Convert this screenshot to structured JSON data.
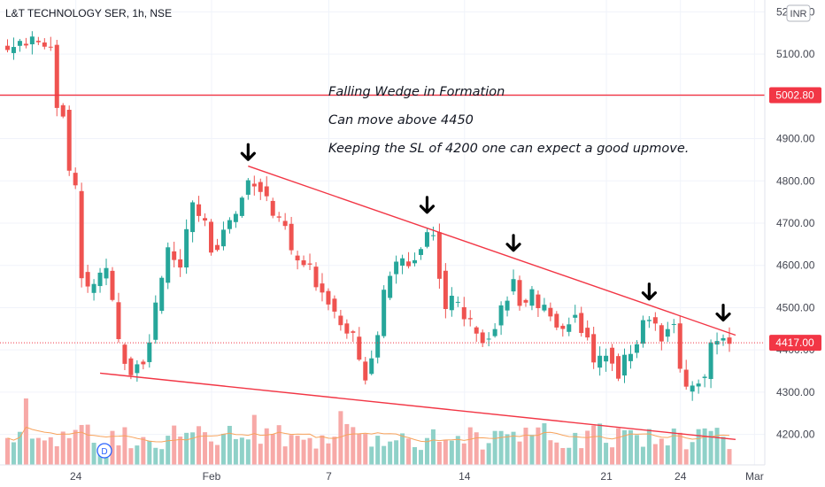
{
  "chart_data": {
    "type": "candlestick",
    "title": "L&T TECHNOLOGY SER, 1h, NSE",
    "currency": "INR",
    "y_ticks": [
      4200,
      4300,
      4400,
      4500,
      4600,
      4700,
      4800,
      4900,
      5000,
      5100,
      5200
    ],
    "y_tick_labels": [
      "4200.00",
      "4300.00",
      "4400.00",
      "4500.00",
      "4600.00",
      "4700.00",
      "4800.00",
      "4900.00",
      "5000.00",
      "5100.00",
      "5200.00"
    ],
    "ylim": [
      4128,
      5228
    ],
    "x_tick_labels": [
      "24",
      "Feb",
      "7",
      "14",
      "21",
      "24",
      "Mar"
    ],
    "x_tick_bars": [
      11,
      33,
      52,
      74,
      97,
      109,
      121
    ],
    "bar_count": 121,
    "resistance_level": {
      "value": 5002.8,
      "label": "5002.80",
      "color": "#f23645"
    },
    "last_price": {
      "value": 4417,
      "label": "4417.00",
      "color": "#f23645"
    },
    "annotations": [
      "Falling Wedge in Formation",
      "Can move above 4450",
      "Keeping the SL of 4200 one can expect a good upmove."
    ],
    "trendlines": [
      {
        "name": "upper",
        "from": {
          "bar": 39,
          "price": 4835
        },
        "to": {
          "bar": 118,
          "price": 4435
        }
      },
      {
        "name": "lower",
        "from": {
          "bar": 15,
          "price": 4345
        },
        "to": {
          "bar": 118,
          "price": 4188
        }
      }
    ],
    "arrow_markers": [
      {
        "bar": 39,
        "price": 4840
      },
      {
        "bar": 68,
        "price": 4715
      },
      {
        "bar": 82,
        "price": 4625
      },
      {
        "bar": 104,
        "price": 4510
      },
      {
        "bar": 116,
        "price": 4460
      }
    ],
    "close_path": [
      [
        0,
        5110
      ],
      [
        3,
        5130
      ],
      [
        6,
        5125
      ],
      [
        7,
        5120
      ],
      [
        8,
        4980
      ],
      [
        9,
        4960
      ],
      [
        10,
        4820
      ],
      [
        11,
        4780
      ],
      [
        12,
        4580
      ],
      [
        13,
        4540
      ],
      [
        14,
        4560
      ],
      [
        16,
        4580
      ],
      [
        17,
        4510
      ],
      [
        18,
        4420
      ],
      [
        19,
        4380
      ],
      [
        20,
        4350
      ],
      [
        21,
        4370
      ],
      [
        22,
        4380
      ],
      [
        23,
        4420
      ],
      [
        24,
        4500
      ],
      [
        25,
        4560
      ],
      [
        26,
        4640
      ],
      [
        28,
        4590
      ],
      [
        29,
        4680
      ],
      [
        30,
        4740
      ],
      [
        31,
        4720
      ],
      [
        32,
        4700
      ],
      [
        33,
        4640
      ],
      [
        34,
        4650
      ],
      [
        35,
        4680
      ],
      [
        36,
        4710
      ],
      [
        37,
        4720
      ],
      [
        38,
        4760
      ],
      [
        39,
        4800
      ],
      [
        40,
        4800
      ],
      [
        41,
        4780
      ],
      [
        42,
        4760
      ],
      [
        43,
        4720
      ],
      [
        44,
        4700
      ],
      [
        45,
        4690
      ],
      [
        46,
        4630
      ],
      [
        47,
        4610
      ],
      [
        48,
        4600
      ],
      [
        49,
        4590
      ],
      [
        50,
        4560
      ],
      [
        51,
        4540
      ],
      [
        52,
        4520
      ],
      [
        53,
        4490
      ],
      [
        54,
        4470
      ],
      [
        55,
        4450
      ],
      [
        56,
        4430
      ],
      [
        57,
        4370
      ],
      [
        58,
        4340
      ],
      [
        59,
        4390
      ],
      [
        60,
        4440
      ],
      [
        61,
        4530
      ],
      [
        62,
        4580
      ],
      [
        63,
        4600
      ],
      [
        64,
        4610
      ],
      [
        65,
        4600
      ],
      [
        66,
        4620
      ],
      [
        67,
        4640
      ],
      [
        68,
        4680
      ],
      [
        69,
        4670
      ],
      [
        70,
        4580
      ],
      [
        71,
        4500
      ],
      [
        72,
        4520
      ],
      [
        73,
        4510
      ],
      [
        74,
        4480
      ],
      [
        75,
        4460
      ],
      [
        76,
        4450
      ],
      [
        77,
        4430
      ],
      [
        78,
        4440
      ],
      [
        79,
        4450
      ],
      [
        80,
        4500
      ],
      [
        81,
        4530
      ],
      [
        82,
        4560
      ],
      [
        83,
        4510
      ],
      [
        84,
        4500
      ],
      [
        85,
        4530
      ],
      [
        86,
        4490
      ],
      [
        87,
        4500
      ],
      [
        88,
        4490
      ],
      [
        89,
        4460
      ],
      [
        90,
        4450
      ],
      [
        91,
        4470
      ],
      [
        92,
        4480
      ],
      [
        93,
        4450
      ],
      [
        94,
        4440
      ],
      [
        95,
        4360
      ],
      [
        96,
        4380
      ],
      [
        97,
        4400
      ],
      [
        98,
        4380
      ],
      [
        99,
        4340
      ],
      [
        100,
        4380
      ],
      [
        101,
        4400
      ],
      [
        102,
        4410
      ],
      [
        103,
        4470
      ],
      [
        104,
        4480
      ],
      [
        105,
        4450
      ],
      [
        106,
        4430
      ],
      [
        107,
        4460
      ],
      [
        108,
        4470
      ],
      [
        109,
        4350
      ],
      [
        110,
        4300
      ],
      [
        111,
        4320
      ],
      [
        112,
        4330
      ],
      [
        113,
        4330
      ],
      [
        114,
        4420
      ],
      [
        115,
        4420
      ],
      [
        116,
        4430
      ],
      [
        117,
        4417
      ]
    ],
    "colors": {
      "up": "#26a69a",
      "down": "#ef5350",
      "volume_up": "#8fd1c8",
      "volume_down": "#f7a9a7",
      "trendline": "#f23645",
      "volume_ma": "#f7a35c"
    },
    "volume_ma_visible": true,
    "session_break_marker": "D",
    "grid": true
  }
}
